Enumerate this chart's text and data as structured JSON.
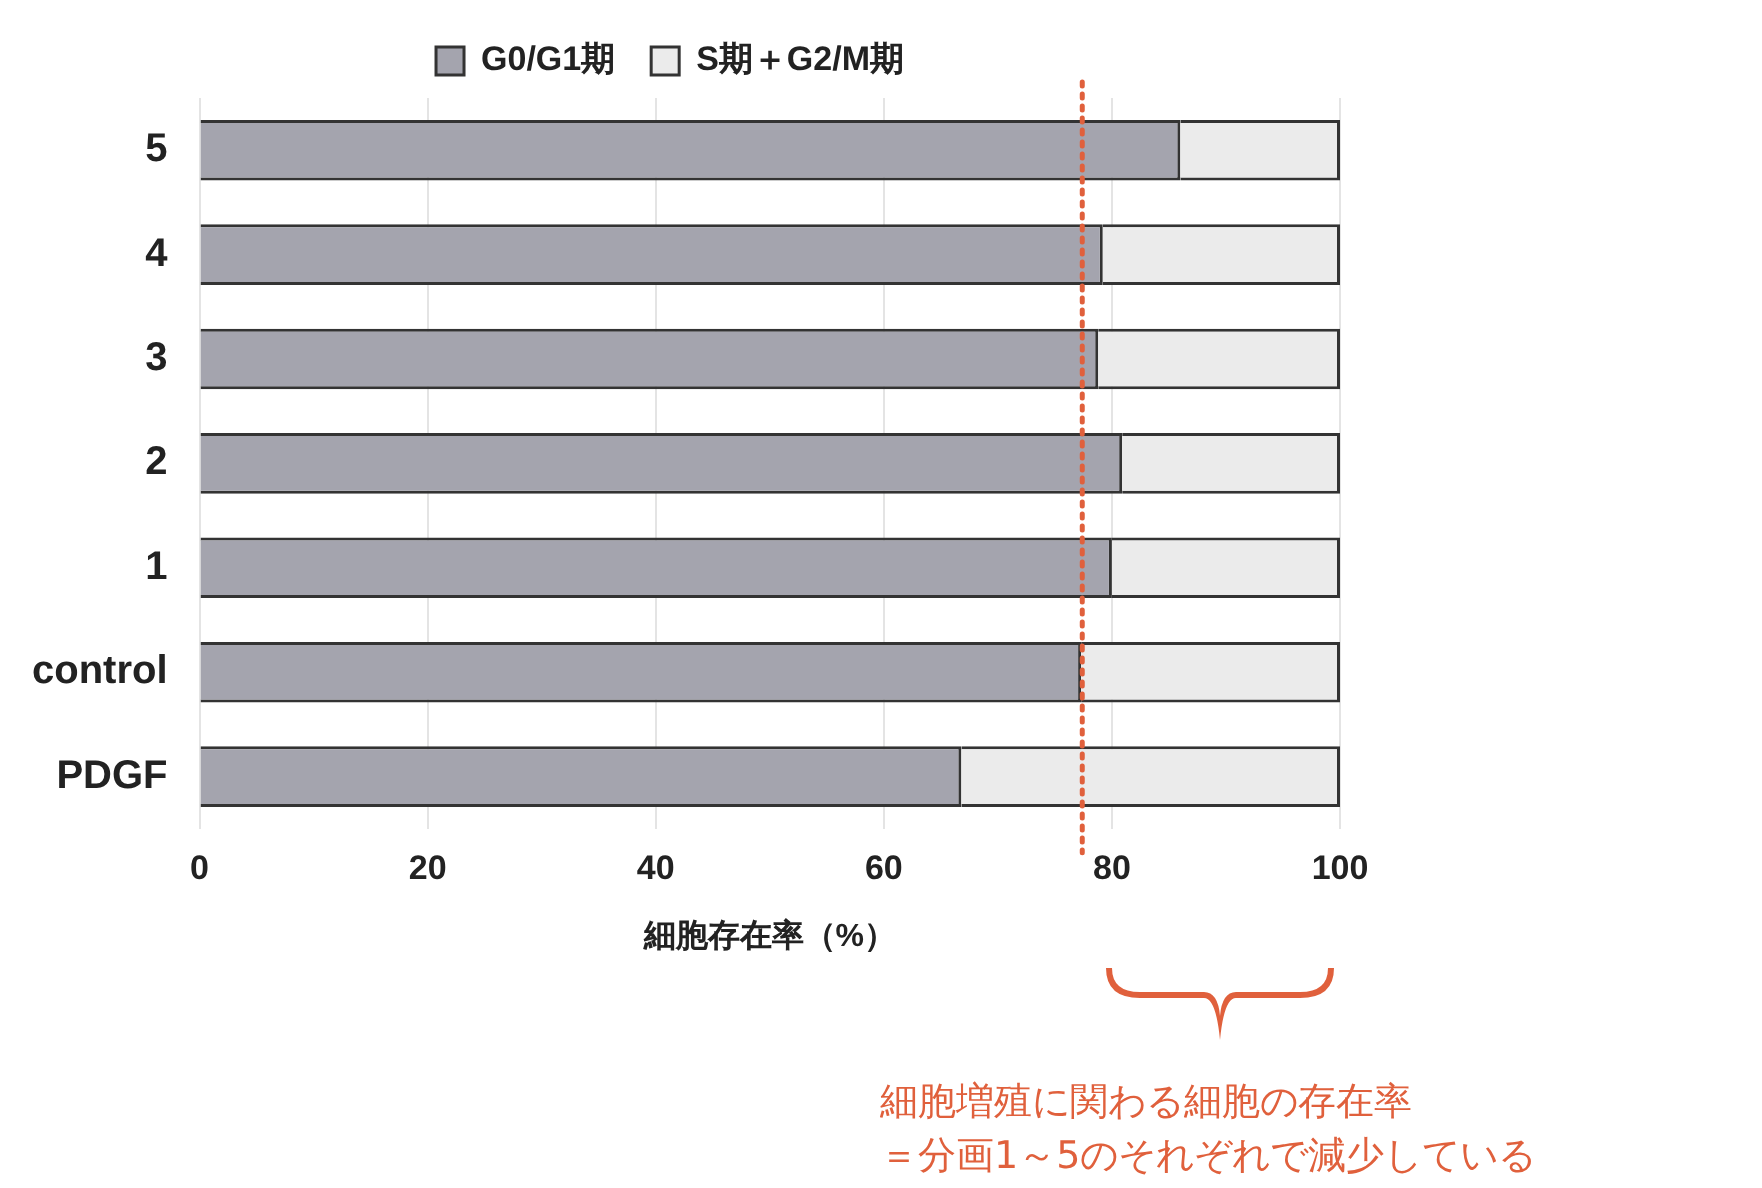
{
  "chart_data": {
    "type": "bar",
    "orientation": "horizontal",
    "stacked": true,
    "categories": [
      "5",
      "4",
      "3",
      "2",
      "1",
      "control",
      "PDGF"
    ],
    "series": [
      {
        "name": "G0/G1期",
        "color": "#a4a4ae",
        "values": [
          86.0,
          79.2,
          78.8,
          80.9,
          80.0,
          77.3,
          66.8
        ]
      },
      {
        "name": "S期＋G2/M期",
        "color": "#ebebeb",
        "values": [
          14.0,
          20.8,
          21.2,
          19.1,
          20.0,
          22.7,
          33.2
        ]
      }
    ],
    "xlim": [
      0,
      100
    ],
    "xticks": [
      0,
      20,
      40,
      60,
      80,
      100
    ],
    "xlabel": "細胞存在率（%）",
    "grid": "x",
    "legend": "top",
    "ref_lines": [
      {
        "axis": "x",
        "value": 77.4,
        "color": "#e0603c",
        "line_style": "dotted"
      }
    ],
    "annotations": [
      "細胞増殖に関わる細胞の存在率",
      "＝分画1～5のそれぞれで減少している"
    ]
  }
}
